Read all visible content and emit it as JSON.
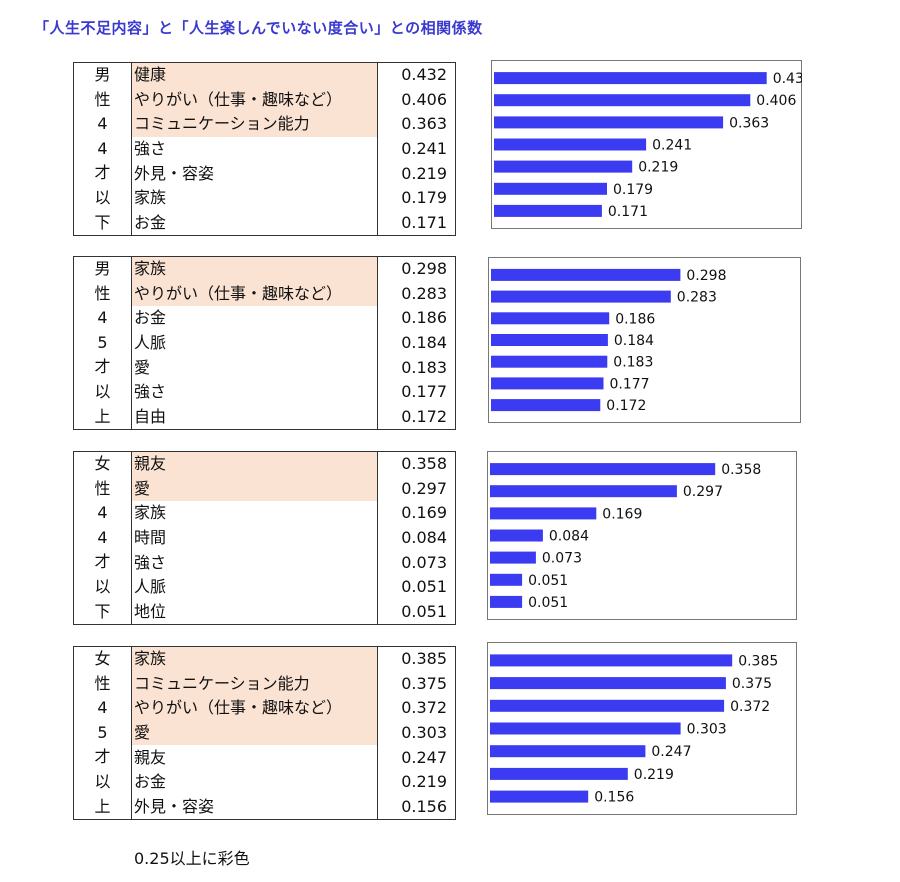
{
  "title": "「人生不足内容」と「人生楽しんでいない度合い」との相関係数",
  "note": "0.25以上に彩色",
  "colors": {
    "bar": "#3b3bf2",
    "highlight": "#fbe3d3",
    "title": "#3a3ad0"
  },
  "highlight_threshold": 0.25,
  "chart_data": [
    {
      "type": "bar",
      "group": "男性44才以下",
      "group_chars": [
        "男",
        "性",
        "4",
        "4",
        "才",
        "以",
        "下"
      ],
      "categories": [
        "健康",
        "やりがい（仕事・趣味など）",
        "コミュニケーション能力",
        "強さ",
        "外見・容姿",
        "家族",
        "お金"
      ],
      "values": [
        "0.432",
        "0.406",
        "0.363",
        "0.241",
        "0.219",
        "0.179",
        "0.171"
      ],
      "highlighted": [
        true,
        true,
        true,
        false,
        false,
        false,
        false
      ]
    },
    {
      "type": "bar",
      "group": "男性45才以上",
      "group_chars": [
        "男",
        "性",
        "4",
        "5",
        "才",
        "以",
        "上"
      ],
      "categories": [
        "家族",
        "やりがい（仕事・趣味など）",
        "お金",
        "人脈",
        "愛",
        "強さ",
        "自由"
      ],
      "values": [
        "0.298",
        "0.283",
        "0.186",
        "0.184",
        "0.183",
        "0.177",
        "0.172"
      ],
      "highlighted": [
        true,
        true,
        false,
        false,
        false,
        false,
        false
      ]
    },
    {
      "type": "bar",
      "group": "女性44才以下",
      "group_chars": [
        "女",
        "性",
        "4",
        "4",
        "才",
        "以",
        "下"
      ],
      "categories": [
        "親友",
        "愛",
        "家族",
        "時間",
        "強さ",
        "人脈",
        "地位"
      ],
      "values": [
        "0.358",
        "0.297",
        "0.169",
        "0.084",
        "0.073",
        "0.051",
        "0.051"
      ],
      "highlighted": [
        true,
        true,
        false,
        false,
        false,
        false,
        false
      ]
    },
    {
      "type": "bar",
      "group": "女性45才以上",
      "group_chars": [
        "女",
        "性",
        "4",
        "5",
        "才",
        "以",
        "上"
      ],
      "categories": [
        "家族",
        "コミュニケーション能力",
        "やりがい（仕事・趣味など）",
        "愛",
        "親友",
        "お金",
        "外見・容姿"
      ],
      "values": [
        "0.385",
        "0.375",
        "0.372",
        "0.303",
        "0.247",
        "0.219",
        "0.156"
      ],
      "highlighted": [
        true,
        true,
        true,
        true,
        false,
        false,
        false
      ]
    }
  ]
}
